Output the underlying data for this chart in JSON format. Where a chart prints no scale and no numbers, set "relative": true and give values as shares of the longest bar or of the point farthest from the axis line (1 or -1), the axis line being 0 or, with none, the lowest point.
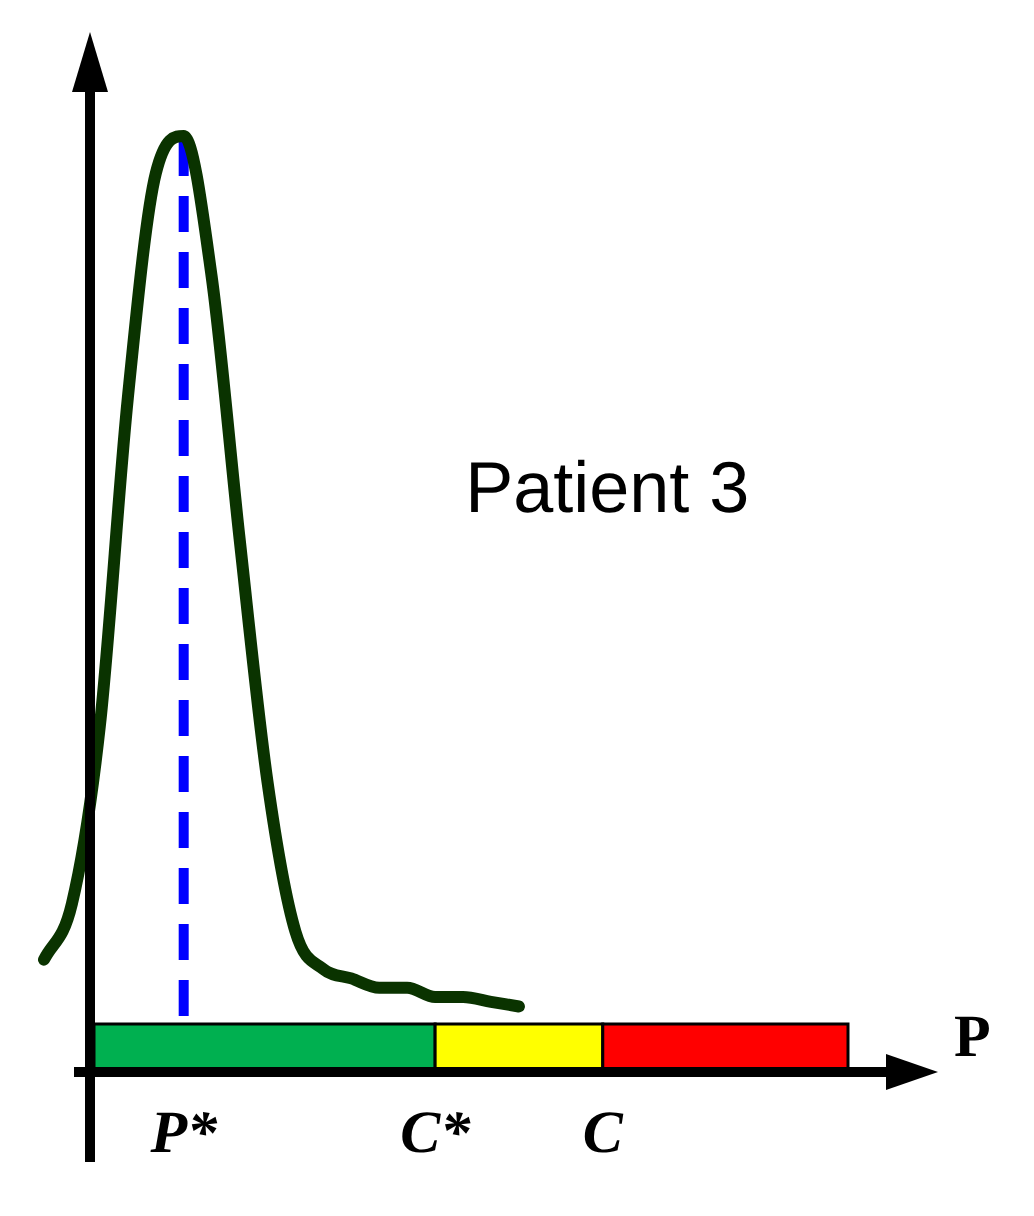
{
  "chart_data": {
    "type": "line",
    "relative": true,
    "xlabel": "P",
    "annotations": [
      "Patient 3"
    ],
    "categories": [
      null,
      null,
      null,
      null,
      null,
      "P*",
      null,
      null,
      null,
      null,
      null,
      null,
      null,
      null,
      "C*",
      null,
      null,
      null,
      null,
      null,
      "C",
      null,
      null,
      null,
      null,
      null,
      null,
      null,
      null,
      null,
      null,
      null,
      null
    ],
    "series": [
      {
        "color": "#0a3300",
        "values": [
          0.12,
          0.18,
          0.37,
          0.72,
          0.96,
          1,
          0.85,
          0.57,
          0.31,
          0.15,
          0.11,
          0.1,
          0.09,
          0.09,
          0.08,
          0.08,
          0.075,
          0.07,
          null,
          null,
          null,
          null,
          null,
          null,
          null,
          null,
          null,
          null,
          null,
          null,
          null,
          null,
          null
        ]
      }
    ],
    "ref_lines": [
      {
        "axis": "x",
        "value": "P*",
        "color": "#0000ff",
        "line_style": "dashed"
      }
    ],
    "grid": false,
    "legend": false,
    "marker": "none",
    "line_style": "solid"
  }
}
